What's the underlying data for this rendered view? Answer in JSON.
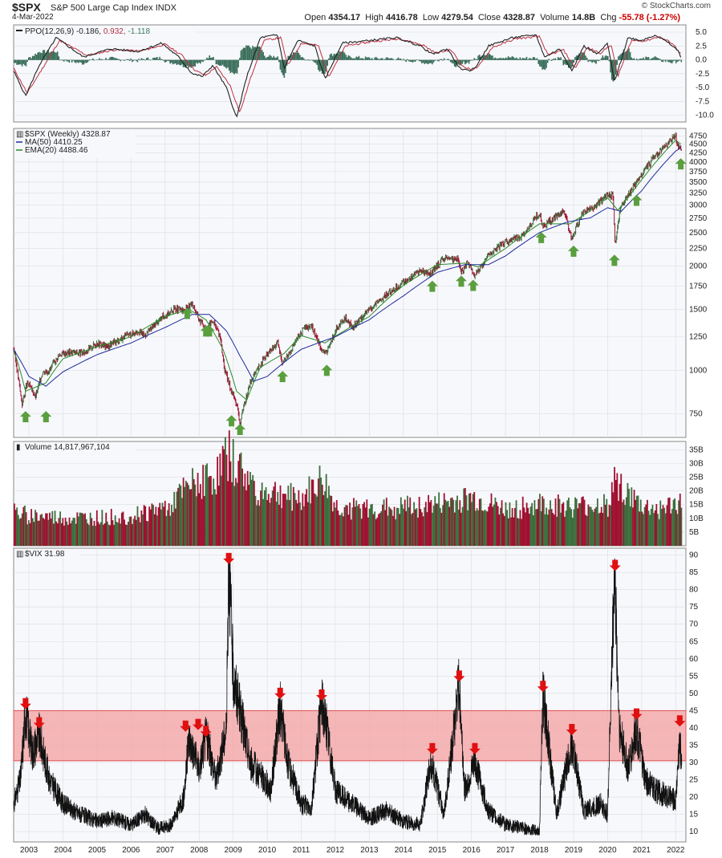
{
  "header": {
    "symbol": "$SPX",
    "name": "S&P 500 Large Cap Index",
    "exchange": "INDX",
    "date": "4-Mar-2022",
    "brand": "© StockCharts.com",
    "open_label": "Open",
    "open": "4354.17",
    "high_label": "High",
    "high": "4416.78",
    "low_label": "Low",
    "low": "4279.54",
    "close_label": "Close",
    "close": "4328.87",
    "volume_label": "Volume",
    "volume": "14.8B",
    "chg_label": "Chg",
    "chg": "-55.78 (-1.27%)"
  },
  "colors": {
    "up": "#3c6e3c",
    "down": "#a01030",
    "ma50": "#1f2a9a",
    "ema20": "#2a8a2a",
    "ppo_line": "#222222",
    "ppo_signal": "#c03040",
    "hist": "#3a6e5a",
    "arrow_up": "#5a9e3e",
    "arrow_down": "#e01010",
    "band": "#f4a0a0",
    "grid": "#dddddd"
  },
  "chart_data": [
    {
      "type": "line",
      "panel": "ppo",
      "legend_prefix": "PPO(12,26,9)",
      "legend_values": [
        "-0.186",
        "0.932",
        "-1.118"
      ],
      "yticks": [
        "5.0",
        "2.5",
        "0.0",
        "-2.5",
        "-5.0",
        "-7.5",
        "-10.0"
      ],
      "ylim": [
        -11.2,
        6.3
      ],
      "series": [
        {
          "role": "ppo",
          "x": [
            2002.55,
            2002.9,
            2003.3,
            2003.8,
            2004.6,
            2005.4,
            2006.2,
            2006.9,
            2007.4,
            2007.8,
            2008.1,
            2008.4,
            2008.8,
            2009.1,
            2009.4,
            2009.8,
            2010.3,
            2010.5,
            2010.9,
            2011.4,
            2011.7,
            2012.2,
            2013.0,
            2013.8,
            2014.5,
            2014.85,
            2015.3,
            2015.65,
            2015.9,
            2016.1,
            2016.5,
            2017.2,
            2017.9,
            2018.15,
            2018.6,
            2018.95,
            2019.3,
            2019.7,
            2020.0,
            2020.2,
            2020.6,
            2021.0,
            2021.4,
            2021.8,
            2022.1,
            2022.18
          ],
          "y": [
            -2.0,
            -6.5,
            -1.0,
            4.0,
            0.5,
            2.0,
            1.5,
            3.0,
            0.5,
            -2.5,
            -3.0,
            -1.0,
            -5.0,
            -10.5,
            -3.0,
            4.0,
            4.5,
            -1.5,
            3.5,
            2.5,
            -3.5,
            3.0,
            3.5,
            4.0,
            2.5,
            1.0,
            2.0,
            -1.5,
            -2.0,
            -1.5,
            2.5,
            4.0,
            4.5,
            0.5,
            2.0,
            -2.0,
            2.5,
            1.0,
            3.0,
            -4.0,
            4.0,
            3.5,
            4.5,
            3.0,
            1.5,
            -0.186
          ]
        },
        {
          "role": "signal",
          "x": [
            2002.55,
            2002.95,
            2003.4,
            2003.9,
            2004.7,
            2005.5,
            2006.3,
            2007.0,
            2007.5,
            2007.9,
            2008.2,
            2008.5,
            2008.9,
            2009.2,
            2009.5,
            2009.9,
            2010.4,
            2010.6,
            2011.0,
            2011.5,
            2011.8,
            2012.3,
            2013.1,
            2013.9,
            2014.6,
            2014.95,
            2015.4,
            2015.75,
            2016.0,
            2016.2,
            2016.6,
            2017.3,
            2018.0,
            2018.25,
            2018.7,
            2019.05,
            2019.4,
            2019.8,
            2020.1,
            2020.3,
            2020.7,
            2021.1,
            2021.5,
            2021.9,
            2022.18
          ],
          "y": [
            -1.5,
            -6.0,
            -1.5,
            3.5,
            0.8,
            1.8,
            1.6,
            2.8,
            0.8,
            -2.0,
            -2.8,
            -1.2,
            -4.5,
            -9.5,
            -3.5,
            3.5,
            4.0,
            -1.0,
            3.0,
            2.6,
            -3.0,
            2.5,
            3.3,
            3.8,
            2.6,
            1.2,
            1.8,
            -1.2,
            -1.8,
            -1.3,
            2.2,
            3.8,
            4.2,
            0.8,
            1.8,
            -1.5,
            2.2,
            1.2,
            2.8,
            -3.0,
            3.5,
            3.4,
            4.2,
            3.0,
            0.932
          ]
        }
      ]
    },
    {
      "type": "line",
      "panel": "price",
      "legend": {
        "symbol": "$SPX (Weekly)",
        "value": "4328.87",
        "ma_name": "MA(50)",
        "ma_value": "4410.25",
        "ema_name": "EMA(20)",
        "ema_value": "4488.46"
      },
      "yscale": "log",
      "yticks": [
        750,
        1000,
        1250,
        1500,
        1750,
        2000,
        2250,
        2500,
        2750,
        3000,
        3250,
        3500,
        3750,
        4000,
        4250,
        4500,
        4750
      ],
      "xticks": [
        2003,
        2004,
        2005,
        2006,
        2007,
        2008,
        2009,
        2010,
        2011,
        2012,
        2013,
        2014,
        2015,
        2016,
        2017,
        2018,
        2019,
        2020,
        2021,
        2022
      ],
      "xlim": [
        2002.55,
        2022.3
      ],
      "ylim": [
        640,
        5000
      ],
      "series": [
        {
          "role": "price",
          "x": [
            2002.55,
            2002.6,
            2002.75,
            2002.8,
            2002.95,
            2003.2,
            2003.4,
            2003.6,
            2003.9,
            2004.2,
            2004.6,
            2005.0,
            2005.3,
            2005.8,
            2006.2,
            2006.4,
            2006.9,
            2007.3,
            2007.55,
            2007.8,
            2008.0,
            2008.2,
            2008.4,
            2008.6,
            2008.75,
            2008.9,
            2009.1,
            2009.2,
            2009.5,
            2009.9,
            2010.3,
            2010.45,
            2010.7,
            2011.1,
            2011.3,
            2011.6,
            2011.75,
            2012.0,
            2012.3,
            2012.5,
            2013.0,
            2013.5,
            2014.0,
            2014.5,
            2014.8,
            2015.2,
            2015.6,
            2015.7,
            2015.9,
            2016.1,
            2016.5,
            2017.0,
            2017.5,
            2018.0,
            2018.1,
            2018.5,
            2018.7,
            2018.95,
            2019.3,
            2019.6,
            2020.0,
            2020.15,
            2020.22,
            2020.4,
            2020.7,
            2021.0,
            2021.4,
            2021.8,
            2021.99,
            2022.05,
            2022.18
          ],
          "y": [
            1160,
            1080,
            860,
            800,
            920,
            840,
            990,
            1000,
            1110,
            1130,
            1120,
            1200,
            1170,
            1250,
            1300,
            1260,
            1420,
            1510,
            1480,
            1560,
            1400,
            1330,
            1390,
            1270,
            1000,
            900,
            800,
            700,
            920,
            1080,
            1200,
            1050,
            1150,
            1330,
            1340,
            1150,
            1120,
            1300,
            1410,
            1330,
            1500,
            1650,
            1800,
            1950,
            1900,
            2110,
            2100,
            1930,
            2050,
            1870,
            2150,
            2350,
            2450,
            2850,
            2600,
            2800,
            2900,
            2400,
            2900,
            2950,
            3230,
            3200,
            2300,
            3000,
            3300,
            3700,
            4150,
            4550,
            4770,
            4450,
            4328.87
          ]
        },
        {
          "role": "ma50",
          "x": [
            2002.55,
            2003.0,
            2003.5,
            2004.0,
            2005.0,
            2006.0,
            2007.0,
            2007.8,
            2008.3,
            2008.8,
            2009.2,
            2009.6,
            2010.0,
            2011.0,
            2012.0,
            2013.0,
            2014.0,
            2015.0,
            2015.8,
            2016.5,
            2017.0,
            2018.0,
            2018.8,
            2019.5,
            2020.0,
            2020.4,
            2021.0,
            2021.5,
            2022.0,
            2022.18
          ],
          "y": [
            1150,
            960,
            900,
            990,
            1110,
            1200,
            1330,
            1450,
            1450,
            1300,
            1100,
            930,
            960,
            1150,
            1250,
            1400,
            1640,
            1920,
            2020,
            2020,
            2140,
            2500,
            2680,
            2760,
            2950,
            2880,
            3300,
            3800,
            4300,
            4410.25
          ]
        },
        {
          "role": "ema20",
          "x": [
            2002.55,
            2002.9,
            2003.5,
            2004.0,
            2005.0,
            2006.0,
            2007.0,
            2007.7,
            2008.2,
            2008.7,
            2009.1,
            2009.4,
            2009.8,
            2010.5,
            2011.0,
            2011.7,
            2012.2,
            2013.0,
            2014.0,
            2015.0,
            2015.8,
            2016.2,
            2017.0,
            2018.0,
            2018.9,
            2019.4,
            2020.0,
            2020.3,
            2020.7,
            2021.0,
            2021.7,
            2022.0,
            2022.18
          ],
          "y": [
            1150,
            870,
            920,
            1080,
            1170,
            1250,
            1430,
            1500,
            1400,
            1150,
            870,
            820,
            1020,
            1120,
            1260,
            1200,
            1290,
            1430,
            1760,
            2020,
            2040,
            1990,
            2250,
            2650,
            2650,
            2850,
            3150,
            2900,
            3250,
            3550,
            4300,
            4620,
            4488.46
          ]
        }
      ]
    },
    {
      "type": "bar",
      "panel": "volume",
      "legend_label": "Volume",
      "legend_value": "14,817,967,104",
      "yticks": [
        "5B",
        "10B",
        "15B",
        "20B",
        "25B",
        "30B",
        "35B"
      ],
      "ylim": [
        0,
        38
      ],
      "series": [
        {
          "role": "volume_billions",
          "x": [
            2002.55,
            2003.0,
            2004.0,
            2005.0,
            2006.0,
            2007.0,
            2007.6,
            2008.0,
            2008.5,
            2008.8,
            2009.0,
            2009.3,
            2009.7,
            2010.3,
            2011.0,
            2011.6,
            2012.0,
            2013.0,
            2014.0,
            2015.0,
            2016.0,
            2017.0,
            2018.0,
            2019.0,
            2020.0,
            2020.2,
            2020.6,
            2021.0,
            2021.5,
            2022.0,
            2022.18
          ],
          "y": [
            12,
            11,
            10,
            10,
            11,
            14,
            20,
            24,
            25,
            34,
            30,
            26,
            20,
            19,
            17,
            24,
            14,
            13,
            14,
            15,
            17,
            13,
            15,
            14,
            15,
            25,
            18,
            14,
            13,
            15,
            14.8
          ]
        }
      ]
    },
    {
      "type": "line",
      "panel": "vix",
      "legend_label": "$VIX",
      "legend_value": "31.98",
      "yticks": [
        10,
        15,
        20,
        25,
        30,
        35,
        40,
        45,
        50,
        55,
        60,
        65,
        70,
        75,
        80,
        85,
        90
      ],
      "ylim": [
        7,
        92
      ],
      "band": [
        30.5,
        45
      ],
      "series": [
        {
          "role": "vix",
          "x": [
            2002.55,
            2002.75,
            2002.9,
            2003.1,
            2003.3,
            2003.6,
            2004.0,
            2004.5,
            2005.0,
            2005.5,
            2006.0,
            2006.4,
            2006.8,
            2007.2,
            2007.55,
            2007.7,
            2008.0,
            2008.2,
            2008.5,
            2008.8,
            2008.87,
            2009.0,
            2009.2,
            2009.5,
            2009.9,
            2010.1,
            2010.38,
            2010.6,
            2011.0,
            2011.3,
            2011.6,
            2011.75,
            2012.0,
            2012.5,
            2013.0,
            2013.5,
            2014.0,
            2014.5,
            2014.8,
            2015.2,
            2015.64,
            2015.8,
            2016.1,
            2016.5,
            2017.0,
            2017.5,
            2018.0,
            2018.1,
            2018.5,
            2018.95,
            2019.3,
            2019.8,
            2020.0,
            2020.2,
            2020.35,
            2020.6,
            2020.85,
            2021.1,
            2021.4,
            2021.8,
            2022.0,
            2022.1,
            2022.18
          ],
          "y": [
            18,
            25,
            45,
            33,
            38,
            25,
            18,
            15,
            13,
            14,
            12,
            15,
            11,
            12,
            20,
            37,
            28,
            38,
            25,
            40,
            89,
            55,
            45,
            30,
            25,
            22,
            46,
            30,
            18,
            17,
            48,
            40,
            22,
            18,
            14,
            16,
            13,
            12,
            30,
            15,
            53,
            22,
            30,
            16,
            12,
            11,
            10,
            50,
            15,
            36,
            16,
            18,
            15,
            85,
            40,
            28,
            40,
            25,
            22,
            20,
            19,
            35,
            31.98
          ]
        }
      ]
    }
  ],
  "annotations": {
    "up_arrows_price": [
      [
        2002.9,
        735
      ],
      [
        2003.5,
        735
      ],
      [
        2007.65,
        1460
      ],
      [
        2008.2,
        1300
      ],
      [
        2008.3,
        1300
      ],
      [
        2008.95,
        715
      ],
      [
        2009.2,
        675
      ],
      [
        2010.45,
        960
      ],
      [
        2011.75,
        1000
      ],
      [
        2014.85,
        1750
      ],
      [
        2015.7,
        1810
      ],
      [
        2016.05,
        1760
      ],
      [
        2018.05,
        2420
      ],
      [
        2019.0,
        2210
      ],
      [
        2020.2,
        2080
      ],
      [
        2020.85,
        3100
      ],
      [
        2022.15,
        3950
      ]
    ],
    "down_arrows_vix": [
      [
        2002.9,
        47
      ],
      [
        2003.3,
        41.5
      ],
      [
        2007.6,
        40.5
      ],
      [
        2007.97,
        41
      ],
      [
        2008.2,
        39
      ],
      [
        2008.87,
        89
      ],
      [
        2010.38,
        50
      ],
      [
        2011.6,
        49.5
      ],
      [
        2014.85,
        34
      ],
      [
        2015.64,
        55
      ],
      [
        2016.1,
        34
      ],
      [
        2018.1,
        52
      ],
      [
        2018.95,
        39.5
      ],
      [
        2020.22,
        87
      ],
      [
        2020.85,
        44
      ],
      [
        2022.12,
        42
      ]
    ]
  }
}
